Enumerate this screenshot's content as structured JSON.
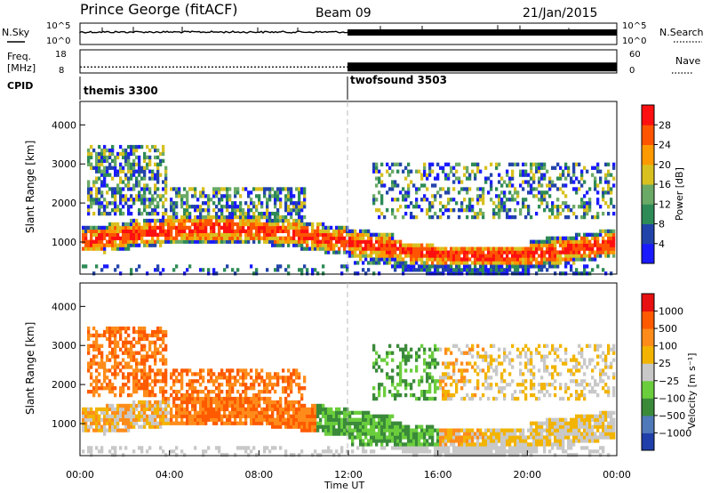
{
  "header": {
    "station": "Prince George (fitACF)",
    "beam": "Beam 09",
    "date": "21/Jan/2015"
  },
  "chart_data": [
    {
      "type": "line",
      "panel": "noise",
      "left_label": "N.Sky",
      "right_label": "N.Search",
      "left_ticks": [
        "10^5",
        "10^0"
      ],
      "right_ticks": [
        "10^5",
        "10^0"
      ],
      "scale": "log",
      "ylim": [
        1,
        100000
      ],
      "x_range_hours": [
        0,
        24
      ],
      "description_values": "sky noise near baseline with small bursts; thicker band after 12:00"
    },
    {
      "type": "line",
      "panel": "frequency",
      "left_label_line1": "Freq.",
      "left_label_line2": "[MHz]",
      "left_ticks": [
        "18",
        "8"
      ],
      "right_ticks": [
        "60",
        "0"
      ],
      "right_label": "Nave",
      "ylim": [
        8,
        18
      ],
      "y2lim": [
        0,
        60
      ],
      "series": [
        {
          "x": [
            0,
            12
          ],
          "freq_mhz": 10.6
        },
        {
          "x": [
            12,
            24
          ],
          "freq_mhz": 10.6
        }
      ]
    },
    {
      "type": "table",
      "panel": "cpid",
      "label": "CPID",
      "segments": [
        {
          "name": "themis 3300",
          "start_hour": 0
        },
        {
          "name": "twofsound 3503",
          "start_hour": 12
        }
      ]
    },
    {
      "type": "heatmap",
      "panel": "power",
      "ylabel": "Slant Range [km]",
      "yticks": [
        "1000",
        "2000",
        "3000",
        "4000"
      ],
      "ylim": [
        180,
        4600
      ],
      "colorbar_label": "Power [dB]",
      "colorbar_ticks": [
        "4",
        "8",
        "12",
        "16",
        "20",
        "24",
        "28"
      ],
      "colorbar_range": [
        0,
        32
      ],
      "colors": [
        "#1a1aff",
        "#2244aa",
        "#2e8b57",
        "#6aaa66",
        "#d8c020",
        "#ff9900",
        "#ff5500",
        "#ff1010"
      ]
    },
    {
      "type": "heatmap",
      "panel": "velocity",
      "ylabel": "Slant Range [km]",
      "yticks": [
        "1000",
        "2000",
        "3000",
        "4000"
      ],
      "ylim": [
        180,
        4600
      ],
      "colorbar_label": "Velocity [m s⁻¹]",
      "colorbar_ticks": [
        "1000",
        "500",
        "100",
        "25",
        "−25",
        "−100",
        "−500",
        "−1000"
      ],
      "colors": [
        "#1f3faa",
        "#4f79b8",
        "#3a8a3a",
        "#6acd3c",
        "#c8c8c8",
        "#f2b400",
        "#ff8c1a",
        "#ff5a00",
        "#e81010"
      ]
    },
    {
      "type": "axis",
      "xlabel": "Time UT",
      "xticks": [
        "00:00",
        "04:00",
        "08:00",
        "12:00",
        "16:00",
        "20:00",
        "00:00"
      ],
      "xlim_hours": [
        0,
        24
      ]
    }
  ]
}
